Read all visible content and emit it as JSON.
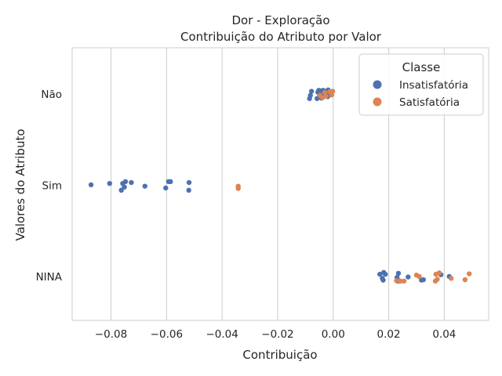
{
  "chart_data": {
    "type": "scatter",
    "title": "Dor - Exploração",
    "subtitle": "Contribuição do Atributo por Valor",
    "xlabel": "Contribuição",
    "ylabel": "Valores do Atributo",
    "xlim": [
      -0.094,
      0.056
    ],
    "x_ticks": [
      -0.08,
      -0.06,
      -0.04,
      -0.02,
      0.0,
      0.02,
      0.04
    ],
    "x_tick_labels": [
      "−0.08",
      "−0.06",
      "−0.04",
      "−0.02",
      "0.00",
      "0.02",
      "0.04"
    ],
    "categories": [
      "Não",
      "Sim",
      "NINA"
    ],
    "grid": "vertical",
    "legend": {
      "title": "Classe",
      "placement": "top-right",
      "entries": [
        "Insatisfatória",
        "Satisfatória"
      ]
    },
    "series": [
      {
        "name": "Insatisfatória",
        "color": "#4c72b0",
        "points": [
          {
            "category": "Não",
            "x": -0.0085,
            "jitter": 0.1
          },
          {
            "category": "Não",
            "x": -0.0082,
            "jitter": 0.03
          },
          {
            "category": "Não",
            "x": -0.0078,
            "jitter": -0.06
          },
          {
            "category": "Não",
            "x": -0.0058,
            "jitter": 0.1
          },
          {
            "category": "Não",
            "x": -0.0055,
            "jitter": -0.04
          },
          {
            "category": "Não",
            "x": -0.0052,
            "jitter": -0.08
          },
          {
            "category": "Não",
            "x": -0.005,
            "jitter": 0.06
          },
          {
            "category": "Não",
            "x": -0.0048,
            "jitter": -0.02
          },
          {
            "category": "Não",
            "x": -0.0046,
            "jitter": 0.01
          },
          {
            "category": "Não",
            "x": -0.0044,
            "jitter": -0.07
          },
          {
            "category": "Não",
            "x": -0.0042,
            "jitter": 0.09
          },
          {
            "category": "Não",
            "x": -0.004,
            "jitter": -0.05
          },
          {
            "category": "Não",
            "x": -0.0036,
            "jitter": -0.08
          },
          {
            "category": "Não",
            "x": -0.0032,
            "jitter": 0.03
          },
          {
            "category": "Não",
            "x": -0.003,
            "jitter": -0.06
          },
          {
            "category": "Não",
            "x": -0.0026,
            "jitter": 0.0
          },
          {
            "category": "Não",
            "x": -0.0022,
            "jitter": -0.03
          },
          {
            "category": "Não",
            "x": -0.002,
            "jitter": 0.06
          },
          {
            "category": "Não",
            "x": -0.0018,
            "jitter": -0.09
          },
          {
            "category": "Não",
            "x": -0.0015,
            "jitter": 0.02
          },
          {
            "category": "Sim",
            "x": -0.0872,
            "jitter": -0.01
          },
          {
            "category": "Sim",
            "x": -0.0805,
            "jitter": -0.04
          },
          {
            "category": "Sim",
            "x": -0.0763,
            "jitter": 0.11
          },
          {
            "category": "Sim",
            "x": -0.0758,
            "jitter": -0.04
          },
          {
            "category": "Sim",
            "x": -0.0752,
            "jitter": 0.04
          },
          {
            "category": "Sim",
            "x": -0.0748,
            "jitter": -0.08
          },
          {
            "category": "Sim",
            "x": -0.0727,
            "jitter": -0.06
          },
          {
            "category": "Sim",
            "x": -0.0678,
            "jitter": 0.02
          },
          {
            "category": "Sim",
            "x": -0.0603,
            "jitter": 0.06
          },
          {
            "category": "Sim",
            "x": -0.0593,
            "jitter": -0.08
          },
          {
            "category": "Sim",
            "x": -0.0586,
            "jitter": -0.08
          },
          {
            "category": "Sim",
            "x": -0.052,
            "jitter": 0.11
          },
          {
            "category": "Sim",
            "x": -0.0519,
            "jitter": -0.06
          },
          {
            "category": "NINA",
            "x": 0.0168,
            "jitter": -0.05
          },
          {
            "category": "NINA",
            "x": 0.0177,
            "jitter": 0.04
          },
          {
            "category": "NINA",
            "x": 0.018,
            "jitter": 0.08
          },
          {
            "category": "NINA",
            "x": 0.0182,
            "jitter": -0.09
          },
          {
            "category": "NINA",
            "x": 0.0188,
            "jitter": -0.05
          },
          {
            "category": "NINA",
            "x": 0.023,
            "jitter": 0.02
          },
          {
            "category": "NINA",
            "x": 0.0232,
            "jitter": 0.1
          },
          {
            "category": "NINA",
            "x": 0.0235,
            "jitter": -0.07
          },
          {
            "category": "NINA",
            "x": 0.024,
            "jitter": 0.1
          },
          {
            "category": "NINA",
            "x": 0.027,
            "jitter": 0.01
          },
          {
            "category": "NINA",
            "x": 0.0318,
            "jitter": 0.08
          },
          {
            "category": "NINA",
            "x": 0.0325,
            "jitter": 0.07
          },
          {
            "category": "NINA",
            "x": 0.0388,
            "jitter": -0.04
          },
          {
            "category": "NINA",
            "x": 0.0418,
            "jitter": 0.0
          }
        ]
      },
      {
        "name": "Satisfatória",
        "color": "#dd8452",
        "points": [
          {
            "category": "Não",
            "x": -0.0048,
            "jitter": 0.03
          },
          {
            "category": "Não",
            "x": -0.0038,
            "jitter": 0.08
          },
          {
            "category": "Não",
            "x": -0.003,
            "jitter": -0.03
          },
          {
            "category": "Não",
            "x": -0.0025,
            "jitter": 0.05
          },
          {
            "category": "Não",
            "x": -0.0012,
            "jitter": -0.05
          },
          {
            "category": "Não",
            "x": -0.0005,
            "jitter": 0.02
          },
          {
            "category": "Não",
            "x": -0.0002,
            "jitter": -0.06
          },
          {
            "category": "Sim",
            "x": -0.0342,
            "jitter": 0.07
          },
          {
            "category": "Sim",
            "x": -0.0342,
            "jitter": 0.02
          },
          {
            "category": "NINA",
            "x": 0.0228,
            "jitter": 0.09
          },
          {
            "category": "NINA",
            "x": 0.0242,
            "jitter": 0.1
          },
          {
            "category": "NINA",
            "x": 0.0255,
            "jitter": 0.1
          },
          {
            "category": "NINA",
            "x": 0.03,
            "jitter": -0.03
          },
          {
            "category": "NINA",
            "x": 0.031,
            "jitter": 0.0
          },
          {
            "category": "NINA",
            "x": 0.0368,
            "jitter": 0.1
          },
          {
            "category": "NINA",
            "x": 0.037,
            "jitter": -0.05
          },
          {
            "category": "NINA",
            "x": 0.0375,
            "jitter": 0.06
          },
          {
            "category": "NINA",
            "x": 0.0382,
            "jitter": -0.08
          },
          {
            "category": "NINA",
            "x": 0.0425,
            "jitter": 0.04
          },
          {
            "category": "NINA",
            "x": 0.0475,
            "jitter": 0.07
          },
          {
            "category": "NINA",
            "x": 0.049,
            "jitter": -0.06
          }
        ]
      }
    ]
  }
}
